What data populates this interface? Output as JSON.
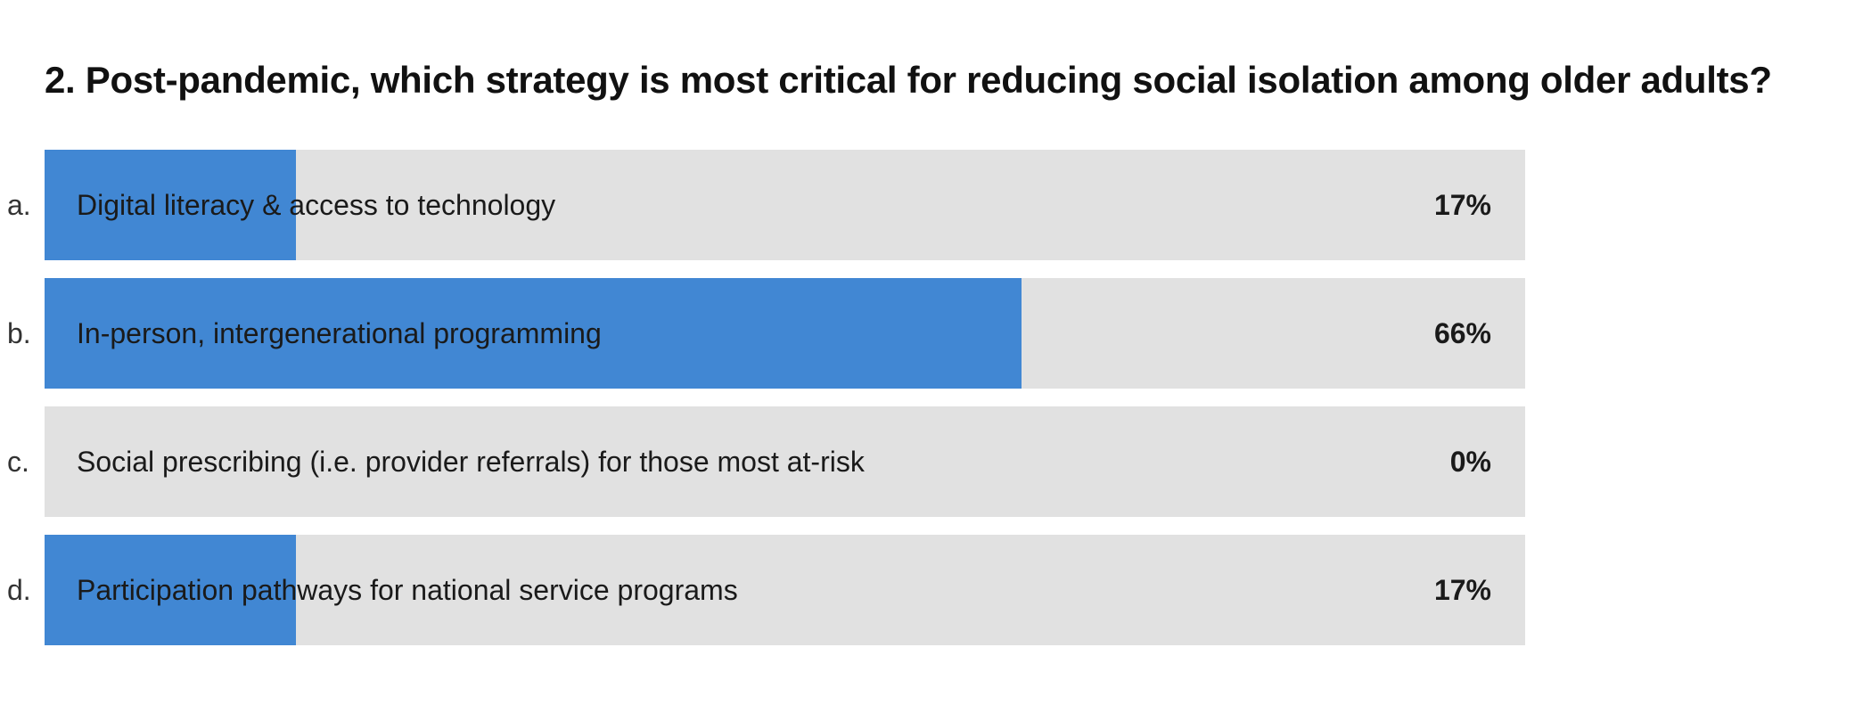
{
  "question": "2. Post-pandemic, which strategy is most critical for reducing social isolation among older adults?",
  "chart_data": {
    "type": "bar",
    "orientation": "horizontal",
    "title": "2. Post-pandemic, which strategy is most critical for reducing social isolation among older adults?",
    "categories": [
      "Digital literacy & access to technology",
      "In-person, intergenerational programming",
      "Social prescribing (i.e. provider referrals) for those most at-risk",
      "Participation pathways for national service programs"
    ],
    "values": [
      17,
      66,
      0,
      17
    ],
    "xlim": [
      0,
      100
    ],
    "grid": false,
    "legend": "none"
  },
  "options": [
    {
      "letter": "a.",
      "label": "Digital literacy & access to technology",
      "percent": "17%"
    },
    {
      "letter": "b.",
      "label": "In-person, intergenerational programming",
      "percent": "66%"
    },
    {
      "letter": "c.",
      "label": "Social prescribing (i.e. provider referrals) for those most at-risk",
      "percent": "0%"
    },
    {
      "letter": "d.",
      "label": "Participation pathways for national service programs",
      "percent": "17%"
    }
  ],
  "colors": {
    "bar_fill": "#4187d3",
    "bar_track": "#e1e1e1",
    "text": "#1a1a1a"
  }
}
